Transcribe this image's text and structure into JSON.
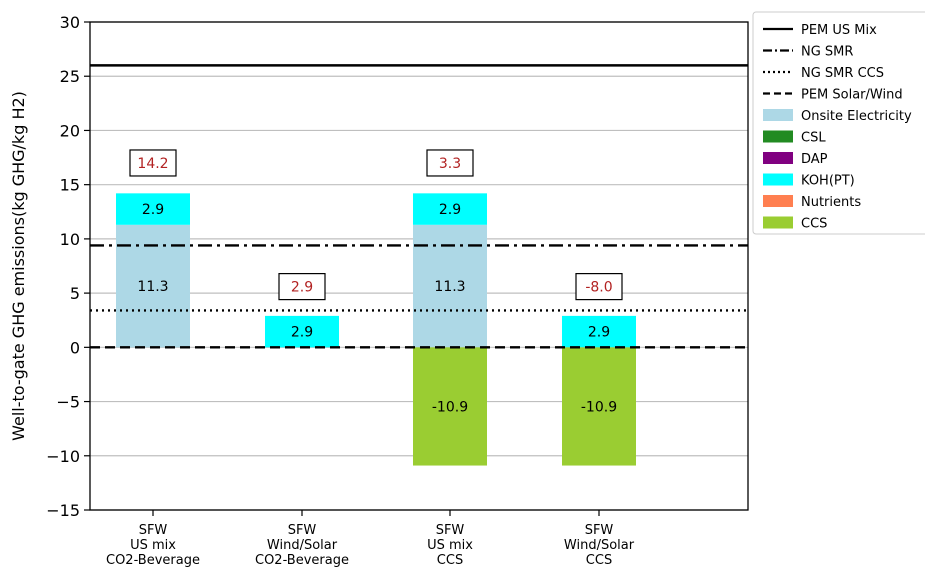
{
  "chart_data": {
    "type": "bar",
    "stacked": true,
    "ylabel": "Well-to-gate GHG emissions(kg GHG/kg H2)",
    "ylim": [
      -15,
      30
    ],
    "yticks": [
      -15,
      -10,
      -5,
      0,
      5,
      10,
      15,
      20,
      25,
      30
    ],
    "grid": true,
    "legend_position": "outside-top-right",
    "categories": [
      [
        "SFW",
        "US mix",
        "CO2-Beverage"
      ],
      [
        "SFW",
        "Wind/Solar",
        "CO2-Beverage"
      ],
      [
        "SFW",
        "US mix",
        "CCS"
      ],
      [
        "SFW",
        "Wind/Solar",
        "CCS"
      ]
    ],
    "series": [
      {
        "name": "Onsite Electricity",
        "color": "#add8e6",
        "values": [
          11.3,
          0,
          11.3,
          0
        ]
      },
      {
        "name": "CSL",
        "color": "#228b22",
        "values": [
          0,
          0,
          0,
          0
        ]
      },
      {
        "name": "DAP",
        "color": "#800080",
        "values": [
          0,
          0,
          0,
          0
        ]
      },
      {
        "name": "KOH(PT)",
        "color": "#00ffff",
        "values": [
          2.9,
          2.9,
          2.9,
          2.9
        ]
      },
      {
        "name": "Nutrients",
        "color": "#ff7f50",
        "values": [
          0,
          0,
          0,
          0
        ]
      },
      {
        "name": "CCS",
        "color": "#9acd32",
        "values": [
          0,
          0,
          -10.9,
          -10.9
        ]
      }
    ],
    "segment_labels": [
      [
        {
          "series": "KOH(PT)",
          "text": "2.9"
        },
        {
          "series": "Onsite Electricity",
          "text": "11.3"
        }
      ],
      [
        {
          "series": "KOH(PT)",
          "text": "2.9"
        }
      ],
      [
        {
          "series": "KOH(PT)",
          "text": "2.9"
        },
        {
          "series": "Onsite Electricity",
          "text": "11.3"
        },
        {
          "series": "CCS",
          "text": "-10.9"
        }
      ],
      [
        {
          "series": "KOH(PT)",
          "text": "2.9"
        },
        {
          "series": "CCS",
          "text": "-10.9"
        }
      ]
    ],
    "net_totals": [
      "14.2",
      "2.9",
      "3.3",
      "-8.0"
    ],
    "net_total_color": "#b22222",
    "reference_lines": [
      {
        "name": "PEM US Mix",
        "value": 26.0,
        "style": "solid"
      },
      {
        "name": "NG SMR",
        "value": 9.4,
        "style": "dashdot"
      },
      {
        "name": "NG SMR CCS",
        "value": 3.4,
        "style": "dotted"
      },
      {
        "name": "PEM Solar/Wind",
        "value": 0.0,
        "style": "dashed"
      }
    ]
  }
}
